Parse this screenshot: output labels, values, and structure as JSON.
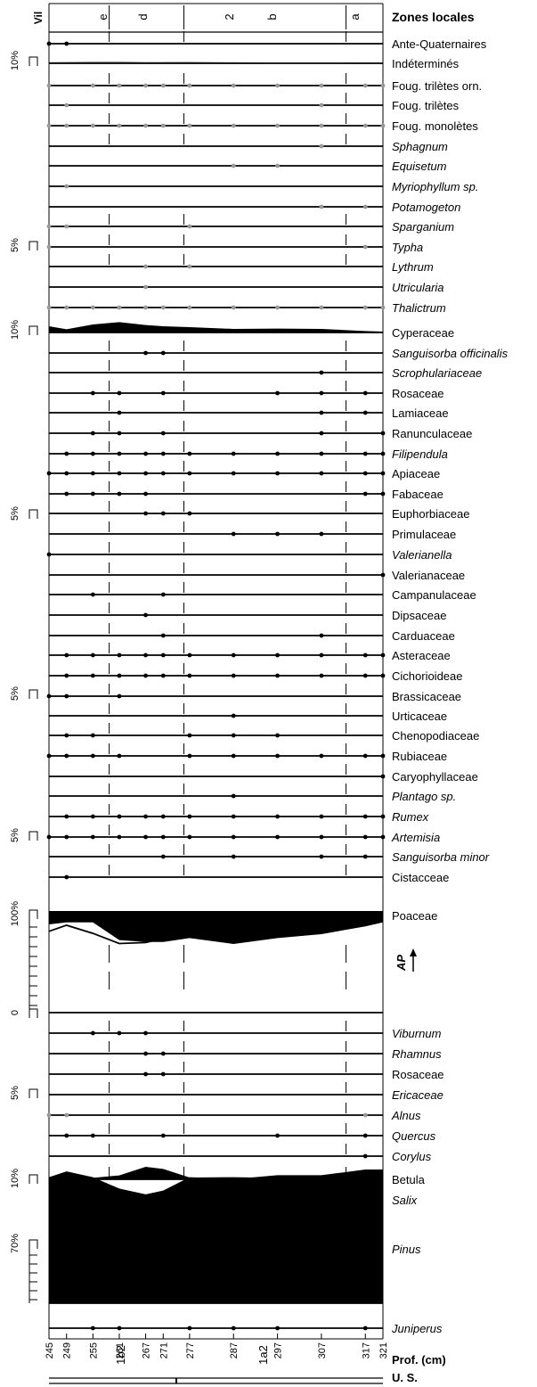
{
  "chart_data": {
    "type": "area",
    "title": "",
    "zones_header": "Zones locales",
    "vil_label": "Vil",
    "zone_labels": [
      "e",
      "d",
      "2",
      "b",
      "a"
    ],
    "depth_label": "Prof. (cm)",
    "us_label": "U. S.",
    "us_units": [
      "1b2",
      "1a2"
    ],
    "ap_label": "AP",
    "depths": [
      245,
      249,
      255,
      261,
      267,
      271,
      277,
      287,
      297,
      307,
      317,
      321
    ],
    "series": [
      {
        "name": "Ante-Quaternaires",
        "style": "dot",
        "present": [
          1,
          1,
          0,
          0,
          0,
          0,
          0,
          0,
          0,
          0,
          0,
          0
        ]
      },
      {
        "name": "Indéterminés",
        "style": "grey",
        "scale": "10%",
        "values": [
          1.2,
          1.5,
          1.8,
          1.9,
          1.4,
          1.5,
          1.6,
          1.1,
          0.2,
          0.2,
          0.8,
          0.2
        ]
      },
      {
        "name": "Foug. trilètes orn.",
        "style": "dotgrey",
        "present": [
          1,
          0,
          1,
          1,
          1,
          1,
          1,
          1,
          1,
          1,
          1,
          1
        ]
      },
      {
        "name": "Foug. trilètes",
        "style": "dotgrey",
        "present": [
          0,
          1,
          0,
          0,
          0,
          0,
          0,
          0,
          0,
          1,
          0,
          0
        ]
      },
      {
        "name": "Foug. monolètes",
        "style": "dotgrey",
        "present": [
          1,
          1,
          1,
          1,
          1,
          1,
          1,
          1,
          1,
          1,
          1,
          1
        ]
      },
      {
        "name": "Sphagnum",
        "style": "dotgrey",
        "italic": true,
        "present": [
          0,
          0,
          0,
          0,
          0,
          0,
          0,
          0,
          0,
          1,
          0,
          0
        ]
      },
      {
        "name": "Equisetum",
        "style": "dotgrey",
        "italic": true,
        "present": [
          0,
          0,
          0,
          0,
          0,
          0,
          0,
          1,
          1,
          0,
          0,
          0
        ]
      },
      {
        "name": "Myriophyllum sp.",
        "style": "dotgrey",
        "italic": true,
        "present": [
          0,
          1,
          0,
          0,
          0,
          0,
          0,
          0,
          0,
          0,
          0,
          0
        ]
      },
      {
        "name": "Potamogeton",
        "style": "dotgrey",
        "italic": true,
        "present": [
          0,
          0,
          0,
          0,
          0,
          0,
          0,
          0,
          0,
          1,
          1,
          0
        ]
      },
      {
        "name": "Sparganium",
        "style": "dotgrey",
        "italic": true,
        "scale": "5%",
        "present": [
          1,
          1,
          0,
          0,
          0,
          0,
          1,
          0,
          0,
          0,
          0,
          0
        ]
      },
      {
        "name": "Typha",
        "style": "dotgrey",
        "italic": true,
        "present": [
          1,
          0,
          0,
          0,
          0,
          0,
          0,
          0,
          0,
          0,
          1,
          0
        ]
      },
      {
        "name": "Lythrum",
        "style": "dotgrey",
        "italic": true,
        "present": [
          0,
          0,
          0,
          0,
          1,
          0,
          1,
          0,
          0,
          0,
          0,
          0
        ]
      },
      {
        "name": "Utricularia",
        "style": "dotgrey",
        "italic": true,
        "present": [
          0,
          0,
          0,
          0,
          1,
          0,
          0,
          0,
          0,
          0,
          0,
          0
        ]
      },
      {
        "name": "Thalictrum",
        "style": "dotgrey",
        "italic": true,
        "present": [
          1,
          1,
          1,
          1,
          1,
          1,
          1,
          1,
          1,
          1,
          1,
          1
        ]
      },
      {
        "name": "Cyperaceae",
        "style": "black",
        "scale": "10%",
        "values": [
          3.5,
          1.8,
          4.5,
          5.8,
          4.2,
          3.5,
          3.0,
          2.0,
          2.2,
          2.0,
          0.8,
          0.5
        ]
      },
      {
        "name": "Sanguisorba officinalis",
        "style": "dot",
        "italic": true,
        "present": [
          0,
          0,
          0,
          0,
          1,
          1,
          0,
          0,
          0,
          0,
          0,
          0
        ]
      },
      {
        "name": "Scrophulariaceae",
        "style": "dot",
        "italic": true,
        "present": [
          0,
          0,
          0,
          0,
          0,
          0,
          0,
          0,
          0,
          1,
          0,
          0
        ]
      },
      {
        "name": "Rosaceae",
        "style": "dot",
        "present": [
          0,
          0,
          1,
          1,
          0,
          1,
          0,
          0,
          1,
          1,
          1,
          0
        ]
      },
      {
        "name": "Lamiaceae",
        "style": "dot",
        "present": [
          0,
          0,
          0,
          1,
          0,
          0,
          0,
          0,
          0,
          1,
          1,
          0
        ]
      },
      {
        "name": "Ranunculaceae",
        "style": "dot",
        "present": [
          0,
          0,
          1,
          1,
          0,
          1,
          0,
          0,
          0,
          1,
          0,
          1
        ]
      },
      {
        "name": "Filipendula",
        "style": "dot",
        "italic": true,
        "present": [
          0,
          1,
          1,
          1,
          1,
          1,
          1,
          1,
          1,
          1,
          1,
          1
        ]
      },
      {
        "name": "Apiaceae",
        "style": "dot",
        "present": [
          1,
          1,
          1,
          1,
          1,
          1,
          1,
          1,
          1,
          1,
          1,
          1
        ]
      },
      {
        "name": "Fabaceae",
        "style": "dot",
        "present": [
          0,
          1,
          1,
          1,
          1,
          0,
          0,
          0,
          0,
          0,
          1,
          1
        ]
      },
      {
        "name": "Euphorbiaceae",
        "style": "dot",
        "scale": "5%",
        "present": [
          0,
          0,
          0,
          0,
          1,
          1,
          1,
          0,
          0,
          0,
          0,
          0
        ]
      },
      {
        "name": "Primulaceae",
        "style": "dot",
        "present": [
          0,
          0,
          0,
          0,
          0,
          0,
          0,
          1,
          1,
          1,
          0,
          0
        ]
      },
      {
        "name": "Valerianella",
        "style": "dot",
        "italic": true,
        "present": [
          1,
          0,
          0,
          0,
          0,
          0,
          0,
          0,
          0,
          0,
          0,
          0
        ]
      },
      {
        "name": "Valerianaceae",
        "style": "dot",
        "present": [
          0,
          0,
          0,
          0,
          0,
          0,
          0,
          0,
          0,
          0,
          0,
          1
        ]
      },
      {
        "name": "Campanulaceae",
        "style": "dot",
        "present": [
          0,
          0,
          1,
          0,
          0,
          1,
          0,
          0,
          0,
          0,
          0,
          0
        ]
      },
      {
        "name": "Dipsaceae",
        "style": "dot",
        "present": [
          0,
          0,
          0,
          0,
          1,
          0,
          0,
          0,
          0,
          0,
          0,
          0
        ]
      },
      {
        "name": "Carduaceae",
        "style": "dot",
        "present": [
          0,
          0,
          0,
          0,
          0,
          1,
          0,
          0,
          0,
          1,
          0,
          0
        ]
      },
      {
        "name": "Asteraceae",
        "style": "dot",
        "present": [
          0,
          1,
          1,
          1,
          1,
          1,
          1,
          1,
          1,
          1,
          1,
          1
        ]
      },
      {
        "name": "Cichorioideae",
        "style": "dot",
        "present": [
          0,
          1,
          1,
          1,
          1,
          1,
          1,
          1,
          1,
          1,
          1,
          1
        ]
      },
      {
        "name": "Brassicaceae",
        "style": "dot",
        "scale": "5%",
        "present": [
          1,
          1,
          0,
          1,
          0,
          0,
          0,
          0,
          0,
          0,
          0,
          0
        ]
      },
      {
        "name": "Urticaceae",
        "style": "dot",
        "present": [
          0,
          0,
          0,
          0,
          0,
          0,
          0,
          1,
          0,
          0,
          0,
          0
        ]
      },
      {
        "name": "Chenopodiaceae",
        "style": "dot",
        "present": [
          0,
          1,
          1,
          0,
          0,
          0,
          1,
          1,
          1,
          0,
          0,
          0
        ]
      },
      {
        "name": "Rubiaceae",
        "style": "dot",
        "present": [
          1,
          1,
          1,
          1,
          0,
          0,
          1,
          1,
          1,
          1,
          1,
          1
        ]
      },
      {
        "name": "Caryophyllaceae",
        "style": "dot",
        "present": [
          0,
          0,
          0,
          0,
          0,
          0,
          0,
          0,
          0,
          0,
          0,
          1
        ]
      },
      {
        "name": "Plantago sp.",
        "style": "dot",
        "italic": true,
        "present": [
          0,
          0,
          0,
          0,
          0,
          0,
          0,
          1,
          0,
          0,
          0,
          0
        ]
      },
      {
        "name": "Rumex",
        "style": "dot",
        "italic": true,
        "present": [
          0,
          1,
          1,
          1,
          1,
          1,
          1,
          1,
          1,
          1,
          1,
          1
        ]
      },
      {
        "name": "Artemisia",
        "style": "dot",
        "italic": true,
        "scale": "5%",
        "present": [
          1,
          1,
          1,
          1,
          1,
          1,
          1,
          1,
          1,
          1,
          1,
          1
        ]
      },
      {
        "name": "Sanguisorba minor",
        "style": "dot",
        "italic": true,
        "present": [
          0,
          0,
          0,
          0,
          0,
          1,
          0,
          1,
          0,
          1,
          1,
          0
        ]
      },
      {
        "name": "Cistacceae",
        "style": "dot",
        "present": [
          0,
          1,
          0,
          0,
          0,
          0,
          0,
          0,
          0,
          0,
          0,
          0
        ]
      },
      {
        "name": "Poaceae",
        "style": "black",
        "scale": "100%",
        "values": [
          95,
          96,
          96,
          87,
          86,
          86,
          88,
          85,
          88,
          90,
          94,
          96
        ]
      },
      {
        "name": "AP",
        "style": "curve",
        "values": [
          80,
          86,
          78,
          68,
          69,
          73,
          76,
          75,
          79,
          80,
          86,
          90
        ]
      },
      {
        "name": "Viburnum",
        "style": "dot",
        "italic": true,
        "scale": "0",
        "present": [
          0,
          0,
          1,
          1,
          1,
          0,
          0,
          0,
          0,
          0,
          0,
          0
        ]
      },
      {
        "name": "Rhamnus",
        "style": "dot",
        "italic": true,
        "present": [
          0,
          0,
          0,
          0,
          1,
          1,
          0,
          0,
          0,
          0,
          0,
          0
        ]
      },
      {
        "name": "Rosaceae",
        "style": "dot",
        "present": [
          0,
          0,
          0,
          0,
          1,
          1,
          0,
          0,
          0,
          0,
          0,
          0
        ]
      },
      {
        "name": "Ericaceae",
        "style": "dot",
        "italic": true,
        "scale": "5%",
        "present": [
          0,
          0,
          0,
          0,
          0,
          0,
          0,
          0,
          0,
          0,
          0,
          0
        ]
      },
      {
        "name": "Alnus",
        "style": "dotgrey",
        "italic": true,
        "present": [
          1,
          1,
          0,
          0,
          0,
          0,
          0,
          0,
          0,
          0,
          1,
          0
        ]
      },
      {
        "name": "Quercus",
        "style": "dot",
        "italic": true,
        "present": [
          0,
          1,
          1,
          0,
          0,
          1,
          0,
          0,
          1,
          0,
          1,
          0
        ]
      },
      {
        "name": "Corylus",
        "style": "dot",
        "italic": true,
        "present": [
          0,
          0,
          0,
          0,
          0,
          0,
          0,
          0,
          0,
          0,
          1,
          0
        ]
      },
      {
        "name": "Betula",
        "style": "black",
        "scale": "10%",
        "values": [
          0.6,
          0.8,
          0.8,
          2.2,
          7.0,
          5.8,
          1.0,
          1.2,
          0.8,
          0.8,
          0.6,
          1.5
        ]
      },
      {
        "name": "Salix",
        "style": "grey",
        "italic": true,
        "values": [
          1.2,
          1.4,
          1.4,
          1.2,
          1.2,
          1.2,
          1.2,
          1.0,
          0.4,
          1.0,
          1.0,
          1.4
        ]
      },
      {
        "name": "Pinus",
        "style": "black",
        "italic": true,
        "scale": "70%",
        "values": [
          66,
          69,
          66,
          60,
          57,
          59,
          66,
          65,
          67,
          67,
          70,
          70
        ]
      },
      {
        "name": "Juniperus",
        "style": "dot",
        "italic": true,
        "present": [
          0,
          0,
          1,
          1,
          0,
          0,
          1,
          1,
          1,
          0,
          1,
          0
        ]
      }
    ]
  }
}
